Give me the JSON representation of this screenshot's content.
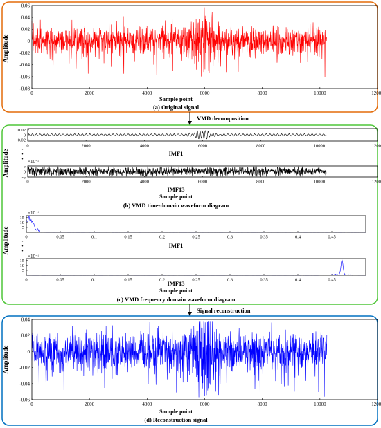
{
  "panel_a": {
    "ylabel": "Amplitude",
    "xlabel": "Sample point",
    "caption": "(a) Original signal",
    "frame_color": "#e36c0a"
  },
  "arrow1_label": "VMD decomposition",
  "panel_bc": {
    "frame_color": "#4fc638",
    "ylabel": "Amplitude",
    "imf1_label": "IMF1",
    "imf13_label": "IMF13",
    "sample_point_label": "Sample point",
    "caption_b": "(b) VMD time-domain waveform diagram",
    "imf13_exponent": "×10⁻³",
    "spec_exponent_1": "×10⁻⁴",
    "spec_exponent_2": "×10⁻⁴",
    "imf1_label_c": "IMF1",
    "imf13_label_c": "IMF13",
    "sample_point_label_c": "Sample point",
    "caption_c": "(c) VMD frequency domain waveform diagram",
    "dots": "·"
  },
  "arrow2_label": "Signal reconstruction",
  "panel_d": {
    "ylabel": "Amplitude",
    "xlabel": "Sample point",
    "caption": "(d) Reconstruction signal",
    "frame_color": "#0070c0"
  },
  "chart_data": [
    {
      "id": "original",
      "type": "line",
      "color": "#ff0000",
      "xlim": [
        0,
        12000
      ],
      "ylim": [
        -0.08,
        0.06
      ],
      "xticks": [
        "0",
        "2000",
        "4000",
        "6000",
        "8000",
        "10000",
        "12000"
      ],
      "yticks": [
        "-0.08",
        "-0.06",
        "-0.04",
        "-0.02",
        "0",
        "0.02",
        "0.04",
        "0.06"
      ],
      "n_samples": 10240,
      "envelope": {
        "typical_peak": 0.02,
        "max": 0.04,
        "min": -0.065,
        "burst_center": 6000
      }
    },
    {
      "id": "imf1_time",
      "type": "line",
      "color": "#000000",
      "xlim": [
        0,
        12000
      ],
      "ylim": [
        -0.025,
        0.025
      ],
      "xticks": [
        "0",
        "2000",
        "4000",
        "6000",
        "8000",
        "10000",
        "12000"
      ],
      "yticks": [
        "-0.02",
        "0",
        "0.02"
      ],
      "n_samples": 10240
    },
    {
      "id": "imf13_time",
      "type": "line",
      "color": "#000000",
      "xlim": [
        0,
        12000
      ],
      "ylim": [
        -5,
        5
      ],
      "y_exponent": "×10⁻³",
      "xticks": [
        "0",
        "2000",
        "4000",
        "6000",
        "8000",
        "10000",
        "12000"
      ],
      "yticks": [
        "-5",
        "0",
        "5"
      ],
      "n_samples": 10240
    },
    {
      "id": "imf1_spectrum",
      "type": "line",
      "color": "#0000ff",
      "xlim": [
        0,
        0.5
      ],
      "ylim": [
        0,
        17
      ],
      "y_exponent": "×10⁻⁴",
      "xticks": [
        "0",
        "0.05",
        "0.1",
        "0.15",
        "0.2",
        "0.25",
        "0.3",
        "0.35",
        "0.4",
        "0.45"
      ],
      "yticks": [
        "5",
        "10",
        "15"
      ],
      "peak_freq": 0.003
    },
    {
      "id": "imf13_spectrum",
      "type": "line",
      "color": "#0000ff",
      "xlim": [
        0,
        0.5
      ],
      "ylim": [
        0,
        17
      ],
      "y_exponent": "×10⁻⁴",
      "xticks": [
        "0",
        "0.05",
        "0.1",
        "0.15",
        "0.2",
        "0.25",
        "0.3",
        "0.35",
        "0.4",
        "0.45"
      ],
      "yticks": [
        "5",
        "10",
        "15"
      ],
      "peak_freq": 0.465
    },
    {
      "id": "reconstruction",
      "type": "line",
      "color": "#0000ff",
      "xlim": [
        0,
        12000
      ],
      "ylim": [
        -0.06,
        0.04
      ],
      "xticks": [
        "0",
        "2000",
        "4000",
        "6000",
        "8000",
        "10000",
        "12000"
      ],
      "yticks": [
        "-0.06",
        "-0.04",
        "-0.02",
        "0",
        "0.02",
        "0.04"
      ],
      "n_samples": 10240
    }
  ]
}
